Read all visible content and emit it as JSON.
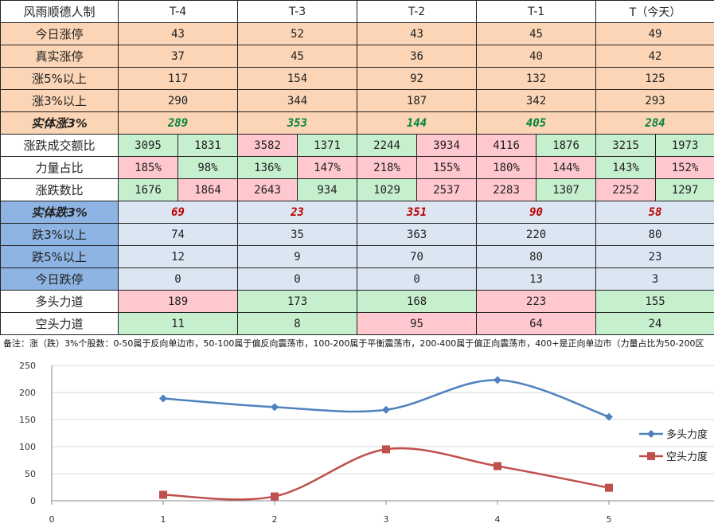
{
  "table": {
    "header": [
      "风雨顺德人制",
      "T-4",
      "T-3",
      "T-2",
      "T-1",
      "T（今天）"
    ],
    "rows": [
      {
        "label": "今日涨停",
        "cells": [
          "43",
          "52",
          "43",
          "45",
          "49"
        ]
      },
      {
        "label": "真实涨停",
        "cells": [
          "37",
          "45",
          "36",
          "40",
          "42"
        ]
      },
      {
        "label": "涨5%以上",
        "cells": [
          "117",
          "154",
          "92",
          "132",
          "125"
        ]
      },
      {
        "label": "涨3%以上",
        "cells": [
          "290",
          "344",
          "187",
          "342",
          "293"
        ]
      },
      {
        "label": "实体涨3%",
        "cells": [
          "289",
          "353",
          "144",
          "405",
          "284"
        ]
      },
      {
        "label": "涨跌成交额比",
        "pairs": [
          [
            "3095",
            "1831"
          ],
          [
            "3582",
            "1371"
          ],
          [
            "2244",
            "3934"
          ],
          [
            "4116",
            "1876"
          ],
          [
            "3215",
            "1973"
          ]
        ]
      },
      {
        "label": "力量占比",
        "pairs": [
          [
            "185%",
            "98%"
          ],
          [
            "136%",
            "147%"
          ],
          [
            "218%",
            "155%"
          ],
          [
            "180%",
            "144%"
          ],
          [
            "143%",
            "152%"
          ]
        ]
      },
      {
        "label": "涨跌数比",
        "pairs": [
          [
            "1676",
            "1864"
          ],
          [
            "2643",
            "934"
          ],
          [
            "1029",
            "2537"
          ],
          [
            "2283",
            "1307"
          ],
          [
            "2252",
            "1297"
          ]
        ]
      },
      {
        "label": "实体跌3%",
        "cells": [
          "69",
          "23",
          "351",
          "90",
          "58"
        ]
      },
      {
        "label": "跌3%以上",
        "cells": [
          "74",
          "35",
          "363",
          "220",
          "80"
        ]
      },
      {
        "label": "跌5%以上",
        "cells": [
          "12",
          "9",
          "70",
          "80",
          "23"
        ]
      },
      {
        "label": "今日跌停",
        "cells": [
          "0",
          "0",
          "0",
          "13",
          "3"
        ]
      },
      {
        "label": "多头力道",
        "cells": [
          "189",
          "173",
          "168",
          "223",
          "155"
        ]
      },
      {
        "label": "空头力道",
        "cells": [
          "11",
          "8",
          "95",
          "64",
          "24"
        ]
      }
    ]
  },
  "note": "备注：涨（跌）3%个股数：0-50属于反向单边市，50-100属于偏反向震荡市，100-200属于平衡震荡市，200-400属于偏正向震荡市，400+是正向单边市（力量占比为50-200区",
  "colors": {
    "bull_series": "#4f81bd",
    "bear_series": "#c0504d"
  },
  "chart_data": {
    "type": "line",
    "x": [
      1,
      2,
      3,
      4,
      5
    ],
    "xlim": [
      0,
      6
    ],
    "ylim": [
      0,
      250
    ],
    "yticks": [
      0,
      50,
      100,
      150,
      200,
      250
    ],
    "xticks": [
      0,
      1,
      2,
      3,
      4,
      5
    ],
    "smooth": true,
    "grid": true,
    "legend_position": "right",
    "series": [
      {
        "name": "多头力度",
        "values": [
          189,
          173,
          168,
          223,
          155
        ],
        "color": "#4f81bd",
        "marker": "diamond"
      },
      {
        "name": "空头力度",
        "values": [
          11,
          8,
          95,
          64,
          24
        ],
        "color": "#c0504d",
        "marker": "square"
      }
    ]
  }
}
